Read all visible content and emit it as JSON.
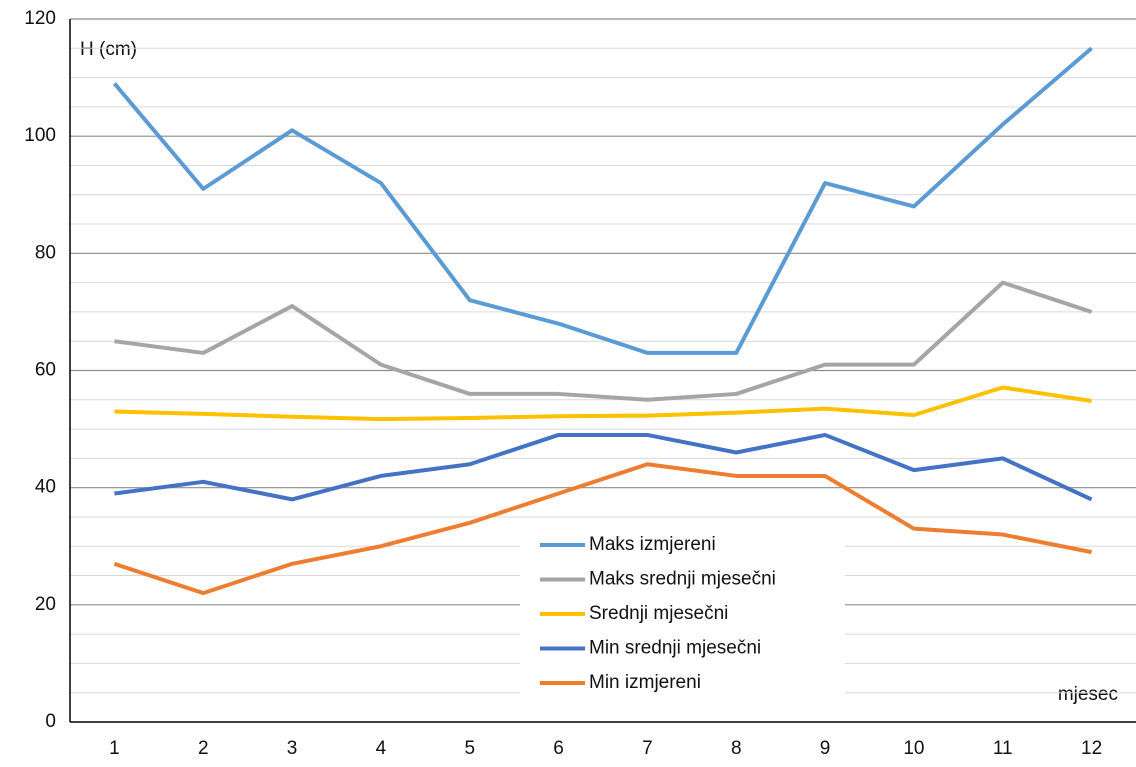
{
  "chart_data": {
    "type": "line",
    "y_axis_label": "H (cm)",
    "x_axis_label": "mjesec",
    "categories": [
      "1",
      "2",
      "3",
      "4",
      "5",
      "6",
      "7",
      "8",
      "9",
      "10",
      "11",
      "12"
    ],
    "series": [
      {
        "name": "Maks izmjereni",
        "color": "#5b9bd5",
        "values": [
          109,
          91,
          101,
          92,
          72,
          68,
          63,
          63,
          92,
          88,
          102,
          115
        ]
      },
      {
        "name": "Maks srednji mjesečni",
        "color": "#a5a5a5",
        "values": [
          65,
          63,
          71,
          61,
          56,
          56,
          55,
          56,
          61,
          61,
          75,
          70
        ]
      },
      {
        "name": "Srednji mjesečni",
        "color": "#ffc000",
        "values": [
          53,
          52.6,
          52.1,
          51.7,
          51.9,
          52.2,
          52.3,
          52.8,
          53.5,
          52.4,
          57.1,
          54.8
        ]
      },
      {
        "name": "Min srednji mjesečni",
        "color": "#4472c4",
        "values": [
          39,
          41,
          38,
          42,
          44,
          49,
          49,
          46,
          49,
          43,
          45,
          38
        ]
      },
      {
        "name": "Min izmjereni",
        "color": "#ed7d31",
        "values": [
          27,
          22,
          27,
          30,
          34,
          39,
          44,
          42,
          42,
          33,
          32,
          29
        ]
      }
    ],
    "ylim": [
      0,
      120
    ],
    "yticks": [
      0,
      20,
      40,
      60,
      80,
      100,
      120
    ],
    "yminor_ticks": [
      5,
      10,
      15,
      25,
      30,
      35,
      45,
      50,
      55,
      65,
      70,
      75,
      85,
      90,
      95,
      105,
      110,
      115
    ],
    "grid": true
  }
}
